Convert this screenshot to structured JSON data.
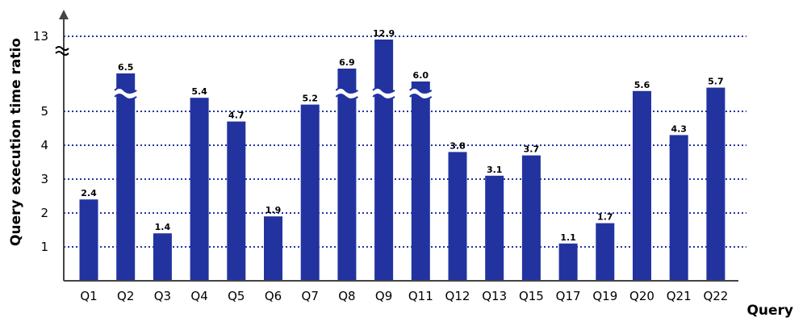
{
  "chart_data": {
    "type": "bar",
    "xlabel": "Query",
    "ylabel": "Query execution time ratio",
    "categories": [
      "Q1",
      "Q2",
      "Q3",
      "Q4",
      "Q5",
      "Q6",
      "Q7",
      "Q8",
      "Q9",
      "Q11",
      "Q12",
      "Q13",
      "Q15",
      "Q17",
      "Q19",
      "Q20",
      "Q21",
      "Q22"
    ],
    "values": [
      2.4,
      6.5,
      1.4,
      5.4,
      4.7,
      1.9,
      5.2,
      6.9,
      12.9,
      6.0,
      3.8,
      3.1,
      3.7,
      1.1,
      1.7,
      5.6,
      4.3,
      5.7
    ],
    "value_labels": [
      "2.4",
      "6.5",
      "1.4",
      "5.4",
      "4.7",
      "1.9",
      "5.2",
      "6.9",
      "12.9",
      "6.0",
      "3.8",
      "3.1",
      "3.7",
      "1.1",
      "1.7",
      "5.6",
      "4.3",
      "5.7"
    ],
    "broken_bars": [
      false,
      true,
      false,
      false,
      false,
      false,
      false,
      true,
      true,
      true,
      false,
      false,
      false,
      false,
      false,
      false,
      false,
      false
    ],
    "yticks": [
      "1",
      "2",
      "3",
      "4",
      "5",
      "13"
    ],
    "ylim": [
      0,
      13
    ],
    "y_axis_break": true,
    "grid": "horizontal dotted",
    "colors": {
      "bar": "#2233a0",
      "grid": "#2233a0",
      "axis": "#444444"
    }
  }
}
